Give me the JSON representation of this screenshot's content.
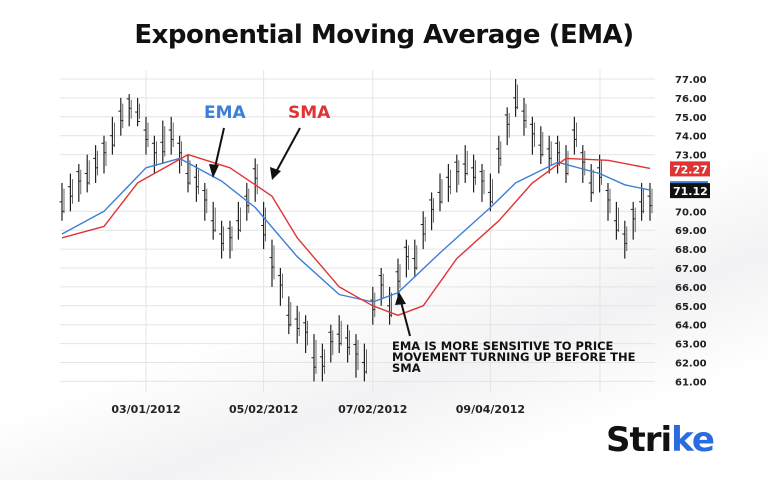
{
  "chart_data": {
    "type": "ohlc-bar-with-lines",
    "title": "Exponential Moving Average (EMA)",
    "y_ticks": [
      "77.00",
      "76.00",
      "75.00",
      "74.00",
      "73.00",
      "70.00",
      "69.00",
      "68.00",
      "67.00",
      "66.00",
      "65.00",
      "64.00",
      "63.00",
      "62.00",
      "61.00"
    ],
    "ylim": [
      61,
      77
    ],
    "x_ticks": [
      "03/01/2012",
      "05/02/2012",
      "07/02/2012",
      "09/04/2012"
    ],
    "x_tick_bar_index": [
      10,
      24,
      37,
      51
    ],
    "grid": true,
    "bars": [
      [
        69.5,
        71.5
      ],
      [
        70,
        72
      ],
      [
        70.5,
        72.5
      ],
      [
        71,
        73
      ],
      [
        71.5,
        73.5
      ],
      [
        72,
        74
      ],
      [
        73,
        75
      ],
      [
        74,
        76
      ],
      [
        74.5,
        76.2
      ],
      [
        74.5,
        76
      ],
      [
        73,
        75
      ],
      [
        72,
        74
      ],
      [
        72.5,
        74.8
      ],
      [
        73,
        75
      ],
      [
        72,
        74
      ],
      [
        71,
        73
      ],
      [
        70.5,
        72.5
      ],
      [
        69.5,
        71.5
      ],
      [
        68.5,
        70.5
      ],
      [
        67.5,
        69.5
      ],
      [
        67.5,
        69.5
      ],
      [
        68.5,
        70.5
      ],
      [
        69.5,
        71.5
      ],
      [
        70.5,
        72.8
      ],
      [
        68,
        70.5
      ],
      [
        66,
        68.5
      ],
      [
        65,
        67
      ],
      [
        63.5,
        65.5
      ],
      [
        63,
        65
      ],
      [
        62.5,
        64.5
      ],
      [
        61,
        63.5
      ],
      [
        61,
        63
      ],
      [
        62,
        64
      ],
      [
        62.5,
        64.5
      ],
      [
        62,
        64
      ],
      [
        61.2,
        63.5
      ],
      [
        61,
        63
      ],
      [
        64,
        66
      ],
      [
        65,
        67
      ],
      [
        64,
        66
      ],
      [
        65.5,
        67.5
      ],
      [
        66.5,
        68.5
      ],
      [
        66.5,
        68.5
      ],
      [
        68,
        70
      ],
      [
        69,
        71
      ],
      [
        70,
        72
      ],
      [
        70.5,
        72.5
      ],
      [
        71,
        73
      ],
      [
        71.5,
        73.5
      ],
      [
        71,
        73
      ],
      [
        70.5,
        72.5
      ],
      [
        70,
        72
      ],
      [
        72,
        74
      ],
      [
        73.5,
        75.5
      ],
      [
        75,
        77
      ],
      [
        74,
        76
      ],
      [
        73,
        75
      ],
      [
        72.5,
        74.5
      ],
      [
        72,
        74
      ],
      [
        72,
        74
      ],
      [
        71.5,
        73.5
      ],
      [
        73,
        75
      ],
      [
        71.5,
        73.5
      ],
      [
        70.5,
        72.5
      ],
      [
        71,
        73
      ],
      [
        69.5,
        71.5
      ],
      [
        68.5,
        70.5
      ],
      [
        67.5,
        69.5
      ],
      [
        68.5,
        70.5
      ],
      [
        69.5,
        71.5
      ],
      [
        69.5,
        71.5
      ]
    ],
    "series": [
      {
        "name": "EMA",
        "color": "#3b7fd6",
        "points": [
          [
            0,
            68.8
          ],
          [
            5,
            70
          ],
          [
            10,
            72.3
          ],
          [
            14,
            72.8
          ],
          [
            19,
            71.6
          ],
          [
            23,
            70.2
          ],
          [
            28,
            67.6
          ],
          [
            33,
            65.6
          ],
          [
            37,
            65.2
          ],
          [
            40,
            65.7
          ],
          [
            45,
            67.8
          ],
          [
            51,
            70.2
          ],
          [
            54,
            71.5
          ],
          [
            59,
            72.6
          ],
          [
            64,
            72
          ],
          [
            67,
            71.4
          ],
          [
            70,
            71.12
          ]
        ],
        "last_value": "71.12"
      },
      {
        "name": "SMA",
        "color": "#e03434",
        "points": [
          [
            0,
            68.6
          ],
          [
            5,
            69.2
          ],
          [
            9,
            71.5
          ],
          [
            15,
            73
          ],
          [
            20,
            72.3
          ],
          [
            25,
            70.8
          ],
          [
            28,
            68.6
          ],
          [
            33,
            66
          ],
          [
            37,
            65
          ],
          [
            40,
            64.5
          ],
          [
            43,
            65
          ],
          [
            47,
            67.5
          ],
          [
            52,
            69.5
          ],
          [
            56,
            71.5
          ],
          [
            60,
            72.8
          ],
          [
            65,
            72.7
          ],
          [
            70,
            72.27
          ]
        ],
        "last_value": "72.27"
      }
    ],
    "annotation": [
      "EMA IS MORE SENSITIVE TO PRICE",
      "MOVEMENT TURNING UP BEFORE THE",
      "SMA"
    ]
  },
  "logo": {
    "text_main": "Stri",
    "text_accent": "ke"
  }
}
